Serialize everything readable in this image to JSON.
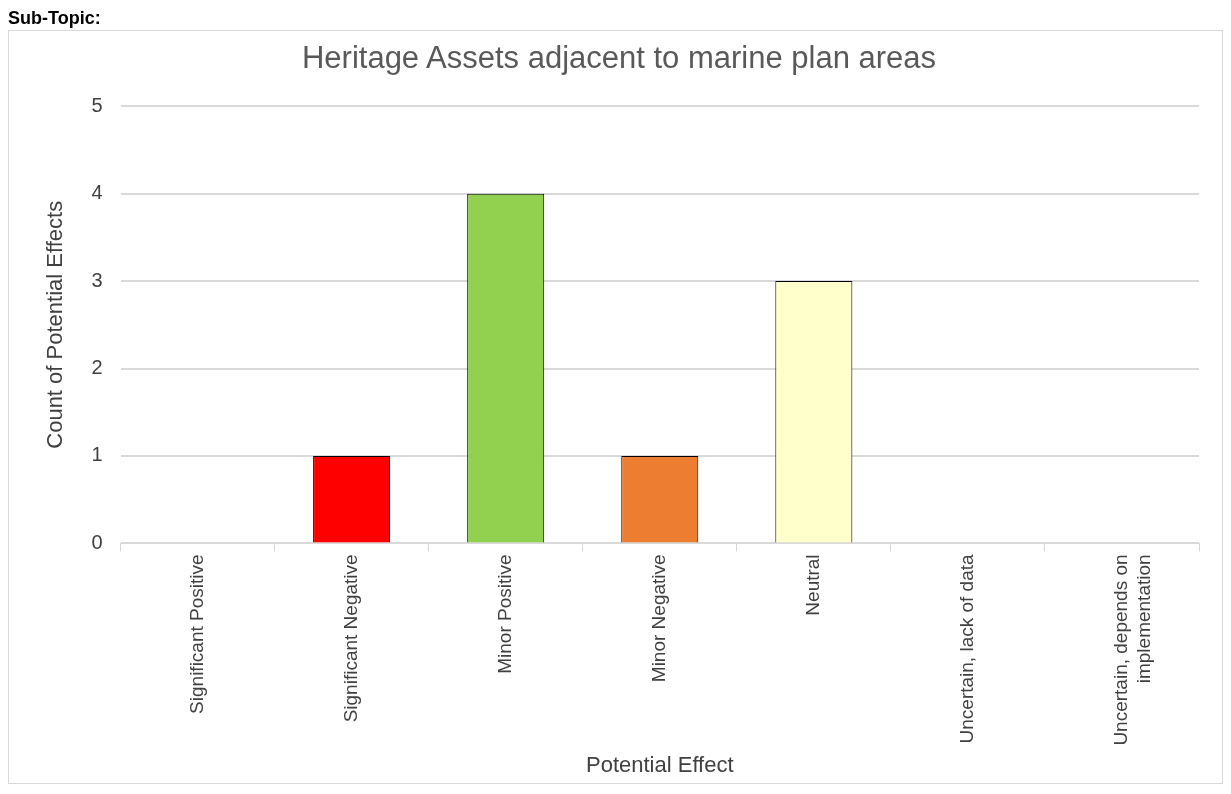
{
  "chart_data": {
    "type": "bar",
    "title": "Heritage Assets adjacent to marine plan areas",
    "xlabel": "Potential Effect",
    "ylabel": "Count of Potential Effects",
    "categories": [
      "Significant Positive",
      "Significant Negative",
      "Minor Positive",
      "Minor Negative",
      "Neutral",
      "Uncertain, lack of data",
      "Uncertain, depends on implementation"
    ],
    "values": [
      0,
      1,
      4,
      1,
      3,
      0,
      0
    ],
    "colors": [
      null,
      "#ff0000",
      "#92d050",
      "#ed7d31",
      "#ffffcc",
      null,
      null
    ],
    "ylim": [
      0,
      5
    ],
    "yticks": [
      0,
      1,
      2,
      3,
      4,
      5
    ],
    "grid": "y",
    "legend": false,
    "annotations": [
      "Sub-Topic:"
    ]
  }
}
